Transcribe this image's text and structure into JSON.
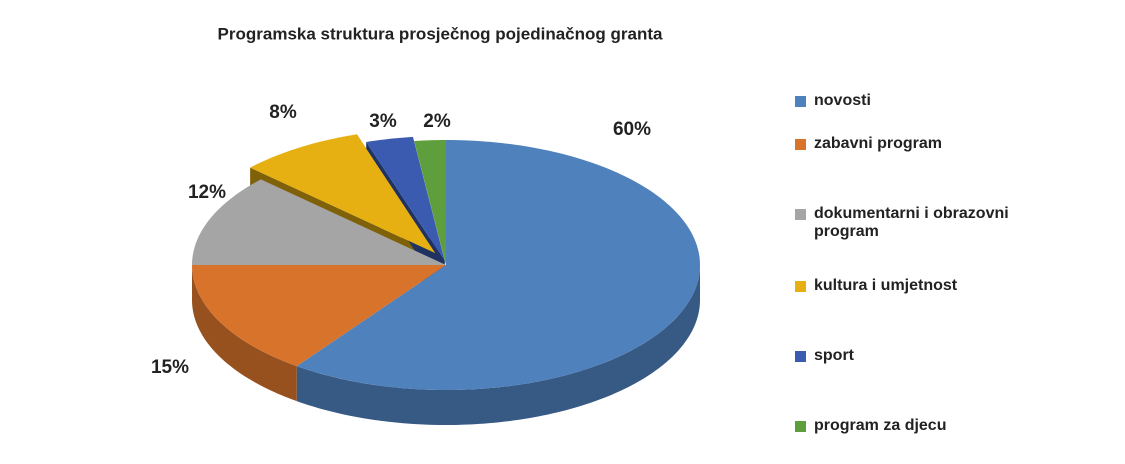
{
  "chart_data": {
    "type": "pie",
    "title": "Programska struktura prosječnog pojedinačnog granta",
    "categories": [
      "novosti",
      "zabavni program",
      "dokumentarni i obrazovni program",
      "kultura i umjetnost",
      "sport",
      "program za djecu"
    ],
    "values": [
      60,
      15,
      12,
      8,
      3,
      2
    ],
    "value_labels": [
      "60%",
      "15%",
      "12%",
      "8%",
      "3%",
      "2%"
    ],
    "colors": [
      "#4f81bd",
      "#d8732c",
      "#a5a5a5",
      "#e6b012",
      "#3a5bb0",
      "#5e9e3c"
    ],
    "legend": "right"
  }
}
